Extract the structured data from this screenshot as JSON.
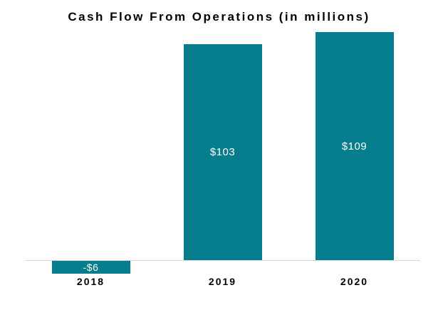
{
  "chart_data": {
    "type": "bar",
    "title": "Cash Flow From Operations (in millions)",
    "categories": [
      "2018",
      "2019",
      "2020"
    ],
    "values": [
      -6,
      103,
      109
    ],
    "value_labels": [
      "-$6",
      "$103",
      "$109"
    ],
    "series": [
      {
        "name": "Cash Flow From Operations",
        "values": [
          -6,
          103,
          109
        ]
      }
    ],
    "xlabel": "",
    "ylabel": "",
    "ylim": [
      -10,
      112
    ],
    "grid": false,
    "legend_position": "none",
    "bar_color": "#057d8c",
    "axis_line_color": "#d9d9d9",
    "value_label_color": "#ffffff",
    "value_label_position": "inside-center"
  }
}
